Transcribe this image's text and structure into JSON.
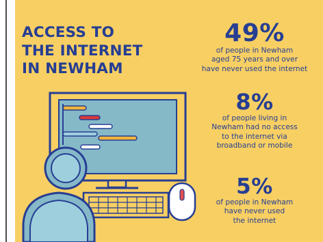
{
  "title": {
    "lines": [
      "ACCESS TO",
      "THE INTERNET",
      "IN NEWHAM"
    ]
  },
  "stats": [
    {
      "value": "49%",
      "lines": [
        "of people in Newham",
        "aged 75 years and over",
        "have never used the internet"
      ]
    },
    {
      "value": "8%",
      "lines": [
        "of people living in",
        "Newham had no access",
        "to the internet via",
        "broadband or mobile"
      ]
    },
    {
      "value": "5%",
      "lines": [
        "of people in Newham",
        "have never used",
        "the internet"
      ]
    }
  ],
  "illustration": {
    "icons": [
      "computer-monitor-icon",
      "person-icon",
      "keyboard-icon",
      "mouse-icon"
    ]
  },
  "colors": {
    "background": "#f7cf63",
    "navy": "#263e93",
    "screen": "#86b9c8",
    "light_blue": "#9ecfdd",
    "code_orange": "#f2b43a",
    "code_red": "#d63a3a",
    "mouse_button": "#e05050"
  }
}
